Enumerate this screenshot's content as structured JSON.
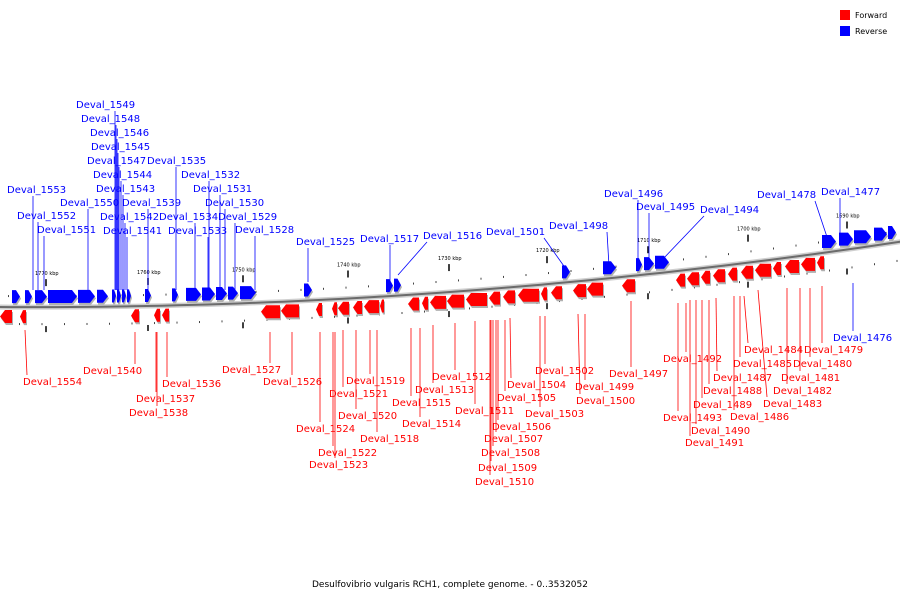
{
  "legend": [
    {
      "label": "Forward",
      "color": "#ff0000"
    },
    {
      "label": "Reverse",
      "color": "#0000ff"
    }
  ],
  "caption": "Desulfovibrio vulgaris RCH1, complete genome. - 0..3532052",
  "scale": [
    {
      "label": "1770 kbp",
      "kbp": 1770
    },
    {
      "label": "1760 kbp",
      "kbp": 1760
    },
    {
      "label": "1750 kbp",
      "kbp": 1750
    },
    {
      "label": "1740 kbp",
      "kbp": 1740
    },
    {
      "label": "1730 kbp",
      "kbp": 1730
    },
    {
      "label": "1720 kbp",
      "kbp": 1720
    },
    {
      "label": "1710 kbp",
      "kbp": 1710
    },
    {
      "label": "1700 kbp",
      "kbp": 1700
    },
    {
      "label": "1690 kbp",
      "kbp": 1690
    }
  ],
  "reverse_genes": [
    "Deval_1553",
    "Deval_1552",
    "Deval_1551",
    "Deval_1550",
    "Deval_1549",
    "Deval_1548",
    "Deval_1546",
    "Deval_1545",
    "Deval_1547",
    "Deval_1544",
    "Deval_1543",
    "Deval_1542",
    "Deval_1541",
    "Deval_1539",
    "Deval_1535",
    "Deval_1534",
    "Deval_1533",
    "Deval_1532",
    "Deval_1531",
    "Deval_1530",
    "Deval_1529",
    "Deval_1528",
    "Deval_1525",
    "Deval_1517",
    "Deval_1516",
    "Deval_1501",
    "Deval_1498",
    "Deval_1496",
    "Deval_1495",
    "Deval_1494",
    "Deval_1478",
    "Deval_1477",
    "Deval_1476"
  ],
  "forward_genes": [
    "Deval_1554",
    "Deval_1540",
    "Deval_1537",
    "Deval_1538",
    "Deval_1536",
    "Deval_1527",
    "Deval_1526",
    "Deval_1524",
    "Deval_1522",
    "Deval_1523",
    "Deval_1521",
    "Deval_1520",
    "Deval_1519",
    "Deval_1518",
    "Deval_1515",
    "Deval_1514",
    "Deval_1513",
    "Deval_1512",
    "Deval_1511",
    "Deval_1510",
    "Deval_1509",
    "Deval_1508",
    "Deval_1507",
    "Deval_1506",
    "Deval_1505",
    "Deval_1504",
    "Deval_1503",
    "Deval_1502",
    "Deval_1500",
    "Deval_1499",
    "Deval_1497",
    "Deval_1493",
    "Deval_1492",
    "Deval_1491",
    "Deval_1490",
    "Deval_1489",
    "Deval_1488",
    "Deval_1487",
    "Deval_1486",
    "Deval_1485",
    "Deval_1484",
    "Deval_1483",
    "Deval_1482",
    "Deval_1481",
    "Deval_1480",
    "Deval_1479"
  ]
}
